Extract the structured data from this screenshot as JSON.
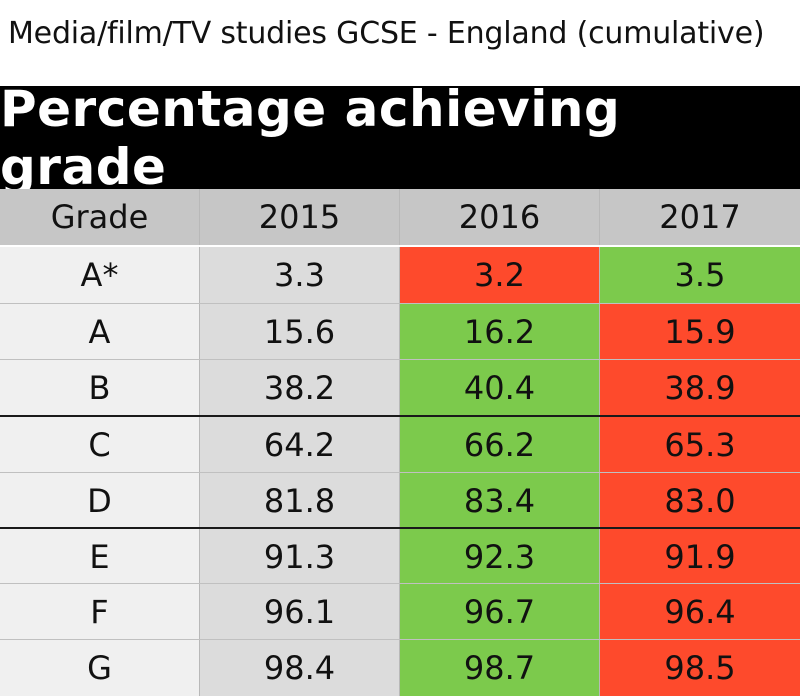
{
  "title": "Media/film/TV studies GCSE - England (cumulative)",
  "banner": "Percentage achieving grade",
  "colors": {
    "increase": "#7cca4c",
    "decrease": "#fe4a2c",
    "header": "#c6c6c6",
    "grade_column": "#f0f0f0",
    "base_column": "#dcdcdc"
  },
  "chart_data": {
    "type": "table",
    "columns": [
      "Grade",
      "2015",
      "2016",
      "2017"
    ],
    "rows": [
      {
        "grade": "A*",
        "values": [
          "3.3",
          "3.2",
          "3.5"
        ],
        "change": [
          "none",
          "down",
          "up"
        ]
      },
      {
        "grade": "A",
        "values": [
          "15.6",
          "16.2",
          "15.9"
        ],
        "change": [
          "none",
          "up",
          "down"
        ]
      },
      {
        "grade": "B",
        "values": [
          "38.2",
          "40.4",
          "38.9"
        ],
        "change": [
          "none",
          "up",
          "down"
        ]
      },
      {
        "grade": "C",
        "values": [
          "64.2",
          "66.2",
          "65.3"
        ],
        "change": [
          "none",
          "up",
          "down"
        ]
      },
      {
        "grade": "D",
        "values": [
          "81.8",
          "83.4",
          "83.0"
        ],
        "change": [
          "none",
          "up",
          "down"
        ]
      },
      {
        "grade": "E",
        "values": [
          "91.3",
          "92.3",
          "91.9"
        ],
        "change": [
          "none",
          "up",
          "down"
        ]
      },
      {
        "grade": "F",
        "values": [
          "96.1",
          "96.7",
          "96.4"
        ],
        "change": [
          "none",
          "up",
          "down"
        ]
      },
      {
        "grade": "G",
        "values": [
          "98.4",
          "98.7",
          "98.5"
        ],
        "change": [
          "none",
          "up",
          "down"
        ]
      }
    ]
  }
}
